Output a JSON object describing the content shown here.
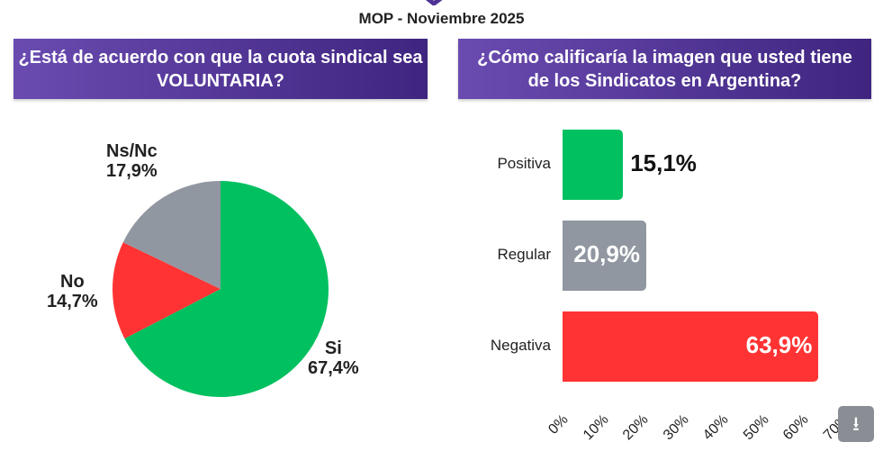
{
  "subtitle": "MOP - Noviembre 2025",
  "colors": {
    "green": "#00c060",
    "red": "#ff3333",
    "gray": "#9197a1",
    "purple": "#4f3294"
  },
  "chart_data": [
    {
      "type": "pie",
      "title": "¿Está de acuerdo con que la cuota sindical sea VOLUNTARIA?",
      "slices": [
        {
          "label": "Si",
          "value": 67.4,
          "text": "67,4%",
          "color": "#00c060"
        },
        {
          "label": "No",
          "value": 14.7,
          "text": "14,7%",
          "color": "#ff3333"
        },
        {
          "label": "Ns/Nc",
          "value": 17.9,
          "text": "17,9%",
          "color": "#9197a1"
        }
      ]
    },
    {
      "type": "bar",
      "orientation": "horizontal",
      "title": "¿Cómo calificaría la imagen que usted tiene de los Sindicatos en Argentina?",
      "categories": [
        "Positiva",
        "Regular",
        "Negativa"
      ],
      "values": [
        15.1,
        20.9,
        63.9
      ],
      "value_labels": [
        "15,1%",
        "20,9%",
        "63,9%"
      ],
      "colors": [
        "#00c060",
        "#9197a1",
        "#ff3333"
      ],
      "xlim": [
        0,
        70
      ],
      "ticks": [
        "0%",
        "10%",
        "20%",
        "30%",
        "40%",
        "50%",
        "60%",
        "70%"
      ]
    }
  ],
  "download_icon": "download-icon"
}
